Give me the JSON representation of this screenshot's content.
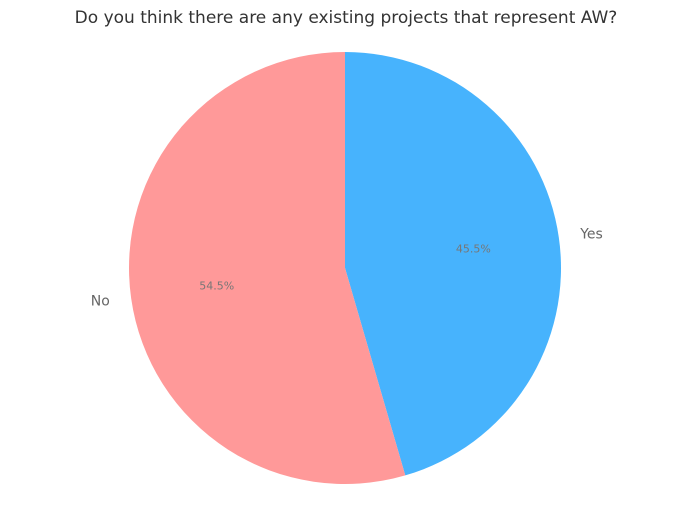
{
  "chart_data": {
    "type": "pie",
    "title": "Do you think there are any existing projects that represent AW?",
    "categories": [
      "Yes",
      "No"
    ],
    "values": [
      45.5,
      54.5
    ],
    "value_labels": [
      "45.5%",
      "54.5%"
    ],
    "colors": [
      "#47b3fd",
      "#ff9999"
    ]
  }
}
